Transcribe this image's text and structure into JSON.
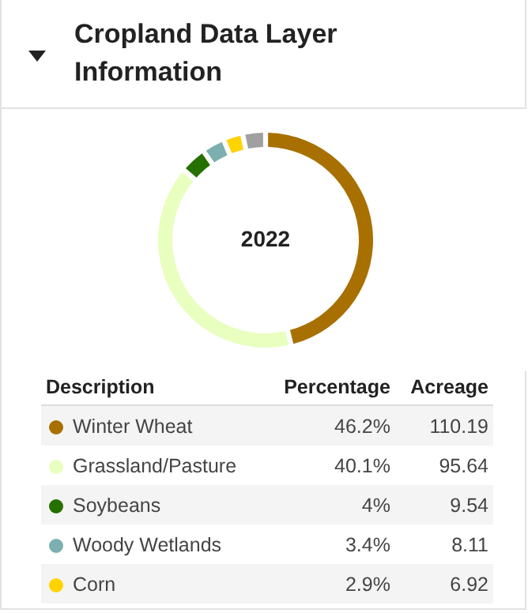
{
  "chart_data": {
    "type": "donut",
    "title": "Cropland Data Layer Information",
    "categories": [
      "Winter Wheat",
      "Grassland/Pasture",
      "Soybeans",
      "Woody Wetlands",
      "Corn",
      null
    ],
    "values": [
      46.2,
      40.1,
      4,
      3.4,
      2.9,
      3.4
    ],
    "colors": [
      "#a87000",
      "#e8ffbf",
      "#267000",
      "#7cafaf",
      "#ffd300",
      "#a0a0a0"
    ],
    "value_labels": [
      "46.2%",
      "40.1%",
      "4%",
      "3.4%",
      "2.9%",
      null
    ],
    "legend": "bottom",
    "annotations": [
      "2022",
      "Description",
      "Percentage",
      "Acreage",
      "110.19",
      "95.64",
      "9.54",
      "8.11",
      "6.92"
    ]
  }
}
